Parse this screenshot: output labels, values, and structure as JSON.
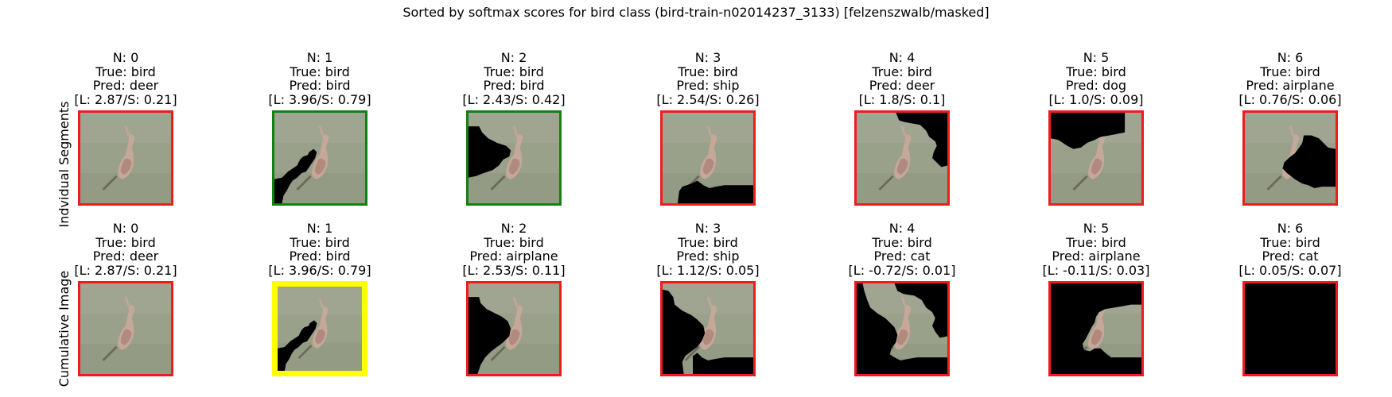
{
  "figure": {
    "title": "Sorted by softmax scores for bird class (bird-train-n02014237_3133) [felzenszwalb/masked]",
    "row_labels": [
      "Indvidual Segments",
      "Cumulative Image"
    ]
  },
  "colors": {
    "border_wrong": "#ee1c1c",
    "border_correct": "#138013",
    "border_highlight": "#ffff00",
    "mask": "#000000",
    "background_image": "#9aa18a"
  },
  "chart_data": {
    "type": "image-grid",
    "rows": [
      {
        "label": "Indvidual Segments",
        "panels": [
          {
            "n": "N: 0",
            "true": "True: bird",
            "pred": "Pred: deer",
            "scores": "[L: 2.87/S: 0.21]",
            "correct": false,
            "highlight": false,
            "mask": "none"
          },
          {
            "n": "N: 1",
            "true": "True: bird",
            "pred": "Pred: bird",
            "scores": "[L: 3.96/S: 0.79]",
            "correct": true,
            "highlight": false,
            "mask": "bottom-left"
          },
          {
            "n": "N: 2",
            "true": "True: bird",
            "pred": "Pred: bird",
            "scores": "[L: 2.43/S: 0.42]",
            "correct": true,
            "highlight": false,
            "mask": "left"
          },
          {
            "n": "N: 3",
            "true": "True: bird",
            "pred": "Pred: ship",
            "scores": "[L: 2.54/S: 0.26]",
            "correct": false,
            "highlight": false,
            "mask": "bottom"
          },
          {
            "n": "N: 4",
            "true": "True: bird",
            "pred": "Pred: deer",
            "scores": "[L: 1.8/S: 0.1]",
            "correct": false,
            "highlight": false,
            "mask": "top-right"
          },
          {
            "n": "N: 5",
            "true": "True: bird",
            "pred": "Pred: dog",
            "scores": "[L: 1.0/S: 0.09]",
            "correct": false,
            "highlight": false,
            "mask": "top-left"
          },
          {
            "n": "N: 6",
            "true": "True: bird",
            "pred": "Pred: airplane",
            "scores": "[L: 0.76/S: 0.06]",
            "correct": false,
            "highlight": false,
            "mask": "right"
          }
        ]
      },
      {
        "label": "Cumulative Image",
        "panels": [
          {
            "n": "N: 0",
            "true": "True: bird",
            "pred": "Pred: deer",
            "scores": "[L: 2.87/S: 0.21]",
            "correct": false,
            "highlight": false,
            "mask": "none"
          },
          {
            "n": "N: 1",
            "true": "True: bird",
            "pred": "Pred: bird",
            "scores": "[L: 3.96/S: 0.79]",
            "correct": true,
            "highlight": true,
            "mask": "bottom-left"
          },
          {
            "n": "N: 2",
            "true": "True: bird",
            "pred": "Pred: airplane",
            "scores": "[L: 2.53/S: 0.11]",
            "correct": false,
            "highlight": false,
            "mask": "cum2"
          },
          {
            "n": "N: 3",
            "true": "True: bird",
            "pred": "Pred: ship",
            "scores": "[L: 1.12/S: 0.05]",
            "correct": false,
            "highlight": false,
            "mask": "cum3"
          },
          {
            "n": "N: 4",
            "true": "True: bird",
            "pred": "Pred: cat",
            "scores": "[L: -0.72/S: 0.01]",
            "correct": false,
            "highlight": false,
            "mask": "cum4"
          },
          {
            "n": "N: 5",
            "true": "True: bird",
            "pred": "Pred: airplane",
            "scores": "[L: -0.11/S: 0.03]",
            "correct": false,
            "highlight": false,
            "mask": "cum5"
          },
          {
            "n": "N: 6",
            "true": "True: bird",
            "pred": "Pred: cat",
            "scores": "[L: 0.05/S: 0.07]",
            "correct": false,
            "highlight": false,
            "mask": "full"
          }
        ]
      }
    ]
  }
}
